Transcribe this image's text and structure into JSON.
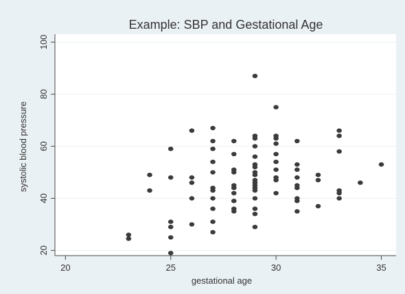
{
  "chart_data": {
    "type": "scatter",
    "title": "Example: SBP and Gestational Age",
    "xlabel": "gestational age",
    "ylabel": "systolic blood pressure",
    "xlim": [
      19.5,
      35.7
    ],
    "ylim": [
      18,
      103
    ],
    "xticks": [
      20,
      25,
      30,
      35
    ],
    "yticks": [
      20,
      40,
      60,
      80,
      100
    ],
    "grid": "horizontal",
    "legend": "none",
    "colors": {
      "background": "#eaf1f4",
      "plot_area": "#ffffff",
      "grid": "#eaf1f4",
      "marker": "#3b3b3b",
      "text": "#333333"
    },
    "series": [
      {
        "points": [
          [
            23,
            26
          ],
          [
            23,
            24.5
          ],
          [
            24,
            49
          ],
          [
            24,
            43
          ],
          [
            25,
            59
          ],
          [
            25,
            48
          ],
          [
            25,
            31
          ],
          [
            25,
            29
          ],
          [
            25,
            25
          ],
          [
            25,
            19
          ],
          [
            26,
            66
          ],
          [
            26,
            48
          ],
          [
            26,
            46
          ],
          [
            26,
            40
          ],
          [
            26,
            30
          ],
          [
            27,
            67
          ],
          [
            27,
            62
          ],
          [
            27,
            59
          ],
          [
            27,
            54
          ],
          [
            27,
            50
          ],
          [
            27,
            44
          ],
          [
            27,
            43
          ],
          [
            27,
            40
          ],
          [
            27,
            36
          ],
          [
            27,
            31
          ],
          [
            27,
            27
          ],
          [
            28,
            62
          ],
          [
            28,
            57
          ],
          [
            28,
            51
          ],
          [
            28,
            50
          ],
          [
            28,
            45
          ],
          [
            28,
            44
          ],
          [
            28,
            42
          ],
          [
            28,
            39
          ],
          [
            28,
            36
          ],
          [
            28,
            35
          ],
          [
            29,
            87
          ],
          [
            29,
            64
          ],
          [
            29,
            63
          ],
          [
            29,
            60
          ],
          [
            29,
            56
          ],
          [
            29,
            53
          ],
          [
            29,
            52
          ],
          [
            29,
            50
          ],
          [
            29,
            49
          ],
          [
            29,
            47
          ],
          [
            29,
            46
          ],
          [
            29,
            45
          ],
          [
            29,
            44
          ],
          [
            29,
            43
          ],
          [
            29,
            40
          ],
          [
            29,
            36
          ],
          [
            29,
            34
          ],
          [
            29,
            29
          ],
          [
            30,
            75
          ],
          [
            30,
            64
          ],
          [
            30,
            63
          ],
          [
            30,
            61
          ],
          [
            30,
            57
          ],
          [
            30,
            54
          ],
          [
            30,
            51
          ],
          [
            30,
            48
          ],
          [
            30,
            47
          ],
          [
            30,
            42
          ],
          [
            31,
            62
          ],
          [
            31,
            53
          ],
          [
            31,
            51
          ],
          [
            31,
            48
          ],
          [
            31,
            45
          ],
          [
            31,
            44
          ],
          [
            31,
            40
          ],
          [
            31,
            39
          ],
          [
            31,
            35
          ],
          [
            32,
            49
          ],
          [
            32,
            47
          ],
          [
            32,
            37
          ],
          [
            33,
            66
          ],
          [
            33,
            64
          ],
          [
            33,
            58
          ],
          [
            33,
            43
          ],
          [
            33,
            42
          ],
          [
            33,
            40
          ],
          [
            34,
            46
          ],
          [
            35,
            53
          ]
        ]
      }
    ]
  }
}
